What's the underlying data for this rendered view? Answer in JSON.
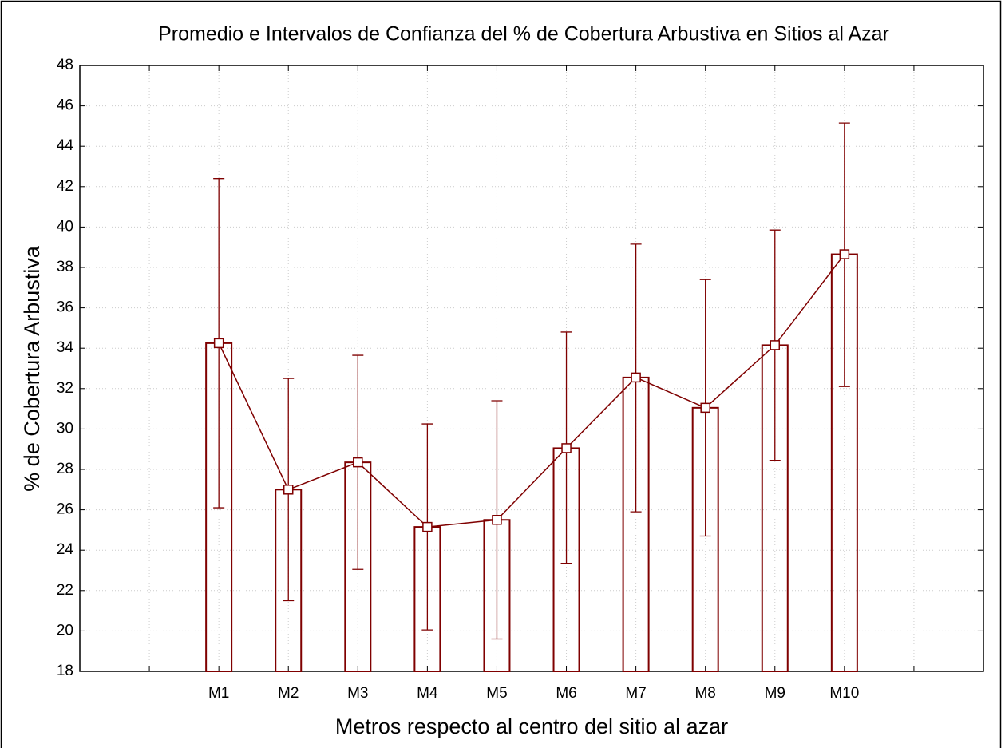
{
  "chart_data": {
    "type": "bar",
    "title": "Promedio e Intervalos de Confianza del % de Cobertura Arbustiva en Sitios al Azar",
    "xlabel": "Metros respecto al centro del sitio al azar",
    "ylabel": "% de Cobertura Arbustiva",
    "categories": [
      null,
      "M1",
      "M2",
      "M3",
      "M4",
      "M5",
      "M6",
      "M7",
      "M8",
      "M9",
      "M10",
      null
    ],
    "values": [
      null,
      34.25,
      27.0,
      28.35,
      25.15,
      25.5,
      29.05,
      32.55,
      31.05,
      34.15,
      38.65,
      null
    ],
    "lower": [
      null,
      26.1,
      21.5,
      23.05,
      20.05,
      19.6,
      23.35,
      25.9,
      24.7,
      28.45,
      32.1,
      null
    ],
    "upper": [
      null,
      42.4,
      32.5,
      33.65,
      30.25,
      31.4,
      34.8,
      39.15,
      37.4,
      39.85,
      45.15,
      null
    ],
    "color": "#7f0000",
    "ylim": [
      18,
      48
    ],
    "yticks": [
      18,
      20,
      22,
      24,
      26,
      28,
      30,
      32,
      34,
      36,
      38,
      40,
      42,
      44,
      46,
      48
    ],
    "grid": true
  }
}
